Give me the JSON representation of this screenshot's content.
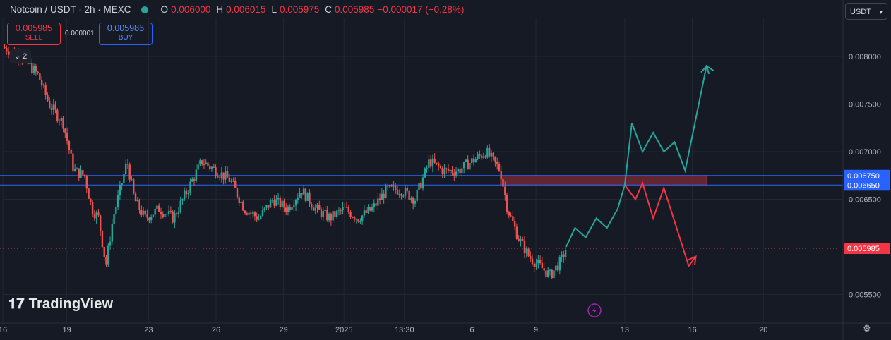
{
  "header": {
    "symbol": "Notcoin / USDT · 2h · MEXC",
    "open_label": "O",
    "open": "0.006000",
    "high_label": "H",
    "high": "0.006015",
    "low_label": "L",
    "low": "0.005975",
    "close_label": "C",
    "close": "0.005985",
    "change": "−0.000017 (−0.28%)"
  },
  "trade": {
    "sell_price": "0.005985",
    "sell_label": "SELL",
    "spread": "0.000001",
    "buy_price": "0.005986",
    "buy_label": "BUY"
  },
  "indicators_toggle": "2",
  "currency_selector": "USDT",
  "branding": "TradingView",
  "colors": {
    "background": "#161a25",
    "up": "#26a69a",
    "down": "#ef5350",
    "level_line": "#2962ff",
    "zone": "#7a2a35",
    "price_line": "#f23645",
    "bull_path": "#26a69a",
    "bear_path": "#f23645",
    "flash_icon": "#9c27b0"
  },
  "chart_data": {
    "type": "candlestick",
    "interval": "2h",
    "y_ticks": [
      "0.008000",
      "0.007500",
      "0.007000",
      "0.006500",
      "0.005500"
    ],
    "y_tick_values": [
      0.008,
      0.0075,
      0.007,
      0.0065,
      0.0055
    ],
    "ylim": [
      0.0052,
      0.0084
    ],
    "x_ticks": [
      "16",
      "19",
      "23",
      "26",
      "29",
      "2025",
      "13:30",
      "6",
      "9",
      "13",
      "16",
      "20"
    ],
    "x_tick_pos": [
      0,
      1.8,
      4.1,
      6.0,
      7.9,
      9.6,
      11.3,
      13.2,
      15.0,
      17.5,
      19.4,
      21.4
    ],
    "x_range": [
      0,
      23.6
    ],
    "levels": [
      {
        "label": "0.006750",
        "value": 0.00675,
        "color": "#2962ff"
      },
      {
        "label": "0.006650",
        "value": 0.00665,
        "color": "#2962ff"
      }
    ],
    "last_price": {
      "label": "0.005985",
      "value": 0.005985
    },
    "zone": {
      "x0": 14.0,
      "x1": 19.8,
      "y0": 0.00665,
      "y1": 0.00675
    },
    "price_path": [
      [
        0,
        0.0081
      ],
      [
        0.5,
        0.008
      ],
      [
        1.0,
        0.0078
      ],
      [
        1.3,
        0.0075
      ],
      [
        1.7,
        0.0073
      ],
      [
        2.0,
        0.0068
      ],
      [
        2.3,
        0.00675
      ],
      [
        2.5,
        0.0064
      ],
      [
        2.7,
        0.0063
      ],
      [
        2.9,
        0.0058
      ],
      [
        3.1,
        0.0063
      ],
      [
        3.3,
        0.0066
      ],
      [
        3.5,
        0.0069
      ],
      [
        3.7,
        0.0065
      ],
      [
        4.0,
        0.0063
      ],
      [
        4.4,
        0.0064
      ],
      [
        4.8,
        0.0063
      ],
      [
        5.2,
        0.0066
      ],
      [
        5.6,
        0.0069
      ],
      [
        6.0,
        0.0068
      ],
      [
        6.4,
        0.0067
      ],
      [
        6.8,
        0.0064
      ],
      [
        7.2,
        0.0063
      ],
      [
        7.6,
        0.0065
      ],
      [
        8.0,
        0.0064
      ],
      [
        8.4,
        0.0066
      ],
      [
        8.8,
        0.0064
      ],
      [
        9.2,
        0.0063
      ],
      [
        9.6,
        0.0064
      ],
      [
        10.0,
        0.0063
      ],
      [
        10.4,
        0.0064
      ],
      [
        10.8,
        0.0066
      ],
      [
        11.2,
        0.0066
      ],
      [
        11.6,
        0.0065
      ],
      [
        12.0,
        0.0069
      ],
      [
        12.4,
        0.0068
      ],
      [
        12.8,
        0.0068
      ],
      [
        13.2,
        0.0069
      ],
      [
        13.6,
        0.007
      ],
      [
        14.0,
        0.0068
      ],
      [
        14.2,
        0.0064
      ],
      [
        14.5,
        0.0061
      ],
      [
        14.8,
        0.0059
      ],
      [
        15.1,
        0.0058
      ],
      [
        15.4,
        0.0057
      ],
      [
        15.7,
        0.00585
      ],
      [
        15.85,
        0.005985
      ]
    ],
    "bull_projection": [
      [
        15.85,
        0.006
      ],
      [
        16.1,
        0.0062
      ],
      [
        16.4,
        0.0061
      ],
      [
        16.7,
        0.0063
      ],
      [
        17.0,
        0.0062
      ],
      [
        17.3,
        0.0064
      ],
      [
        17.5,
        0.00665
      ],
      [
        17.7,
        0.0073
      ],
      [
        18.0,
        0.007
      ],
      [
        18.3,
        0.0072
      ],
      [
        18.6,
        0.007
      ],
      [
        18.9,
        0.0071
      ],
      [
        19.2,
        0.0068
      ],
      [
        19.8,
        0.0079
      ],
      [
        20.0,
        0.00785
      ]
    ],
    "bear_projection": [
      [
        17.5,
        0.00665
      ],
      [
        17.8,
        0.0065
      ],
      [
        18.0,
        0.00667
      ],
      [
        18.3,
        0.0063
      ],
      [
        18.6,
        0.00662
      ],
      [
        19.3,
        0.0058
      ],
      [
        19.5,
        0.0059
      ]
    ]
  }
}
